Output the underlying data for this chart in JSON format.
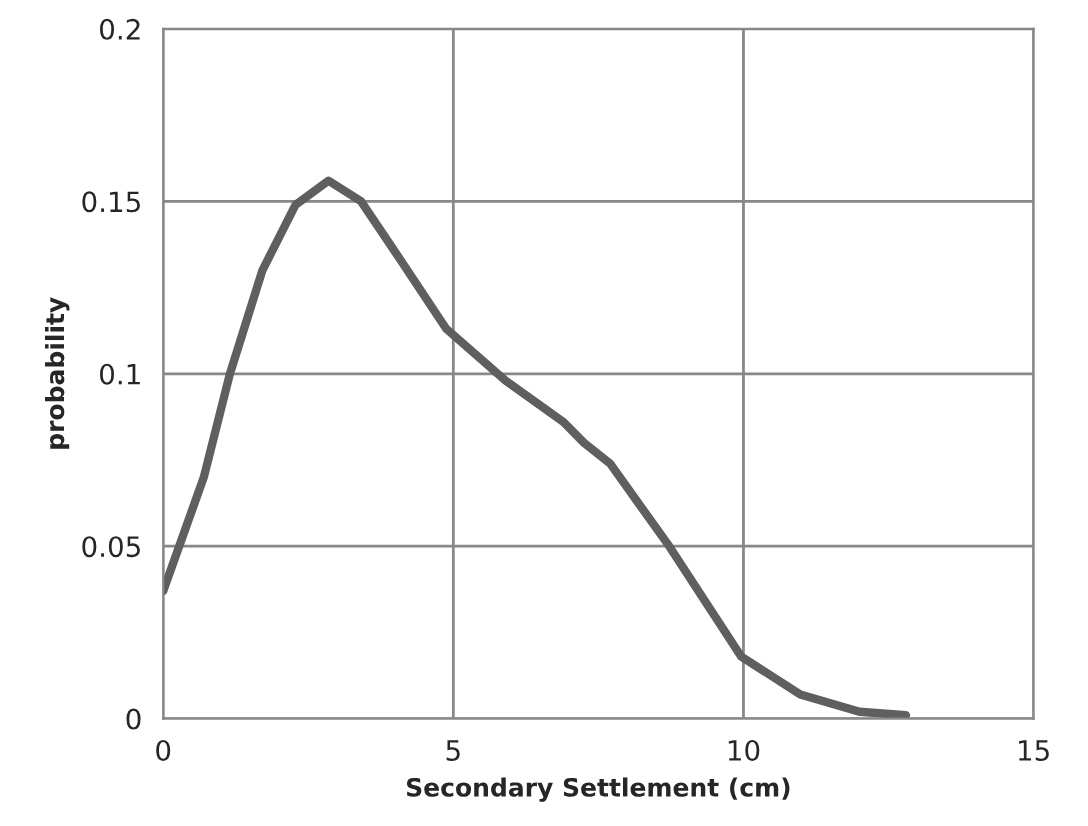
{
  "chart_data": {
    "type": "line",
    "xlabel": "Secondary Settlement (cm)",
    "ylabel": "probability",
    "x": [
      0,
      0.7,
      1.15,
      1.71,
      2.28,
      2.85,
      3.41,
      4.09,
      4.88,
      5.9,
      6.9,
      7.25,
      7.7,
      8.72,
      9.96,
      10.98,
      12.0,
      12.8
    ],
    "series": [
      {
        "color": "#5f5f5f",
        "values": [
          0.037,
          0.07,
          0.1,
          0.13,
          0.149,
          0.156,
          0.15,
          0.133,
          0.113,
          0.098,
          0.086,
          0.08,
          0.074,
          0.05,
          0.018,
          0.007,
          0.002,
          0.001
        ]
      }
    ],
    "xlim": [
      0,
      15
    ],
    "ylim": [
      0,
      0.2
    ],
    "xticks": [
      0,
      5,
      10,
      15
    ],
    "yticks": [
      0,
      0.05,
      0.1,
      0.15,
      0.2
    ],
    "grid": true,
    "marker": "none",
    "line_style": "solid"
  }
}
